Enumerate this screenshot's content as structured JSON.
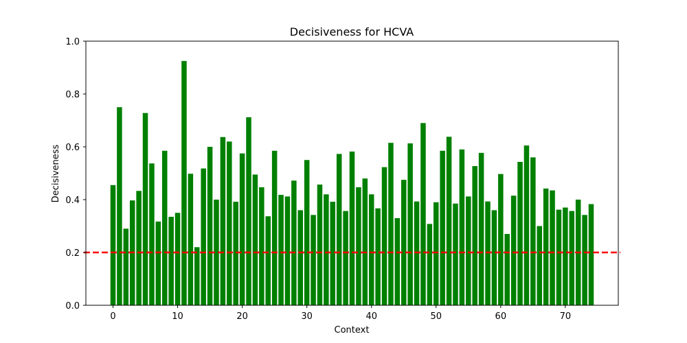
{
  "chart_data": {
    "type": "bar",
    "title": "Decisiveness for HCVA",
    "xlabel": "Context",
    "ylabel": "Decisiveness",
    "xlim": [
      -4.2,
      78.2
    ],
    "ylim": [
      0.0,
      1.0
    ],
    "xticks": [
      0,
      10,
      20,
      30,
      40,
      50,
      60,
      70
    ],
    "yticks": [
      0.0,
      0.2,
      0.4,
      0.6,
      0.8,
      1.0
    ],
    "xtick_labels": [
      "0",
      "10",
      "20",
      "30",
      "40",
      "50",
      "60",
      "70"
    ],
    "ytick_labels": [
      "0.0",
      "0.2",
      "0.4",
      "0.6",
      "0.8",
      "1.0"
    ],
    "bar_color": "#008000",
    "threshold": {
      "value": 0.2,
      "color": "#ff0000",
      "style": "dashed"
    },
    "grid": false,
    "x": [
      0,
      1,
      2,
      3,
      4,
      5,
      6,
      7,
      8,
      9,
      10,
      11,
      12,
      13,
      14,
      15,
      16,
      17,
      18,
      19,
      20,
      21,
      22,
      23,
      24,
      25,
      26,
      27,
      28,
      29,
      30,
      31,
      32,
      33,
      34,
      35,
      36,
      37,
      38,
      39,
      40,
      41,
      42,
      43,
      44,
      45,
      46,
      47,
      48,
      49,
      50,
      51,
      52,
      53,
      54,
      55,
      56,
      57,
      58,
      59,
      60,
      61,
      62,
      63,
      64,
      65,
      66,
      67,
      68,
      69,
      70,
      71,
      72,
      73,
      74
    ],
    "values": [
      0.455,
      0.75,
      0.29,
      0.397,
      0.433,
      0.728,
      0.537,
      0.317,
      0.585,
      0.335,
      0.35,
      0.925,
      0.498,
      0.22,
      0.518,
      0.6,
      0.4,
      0.637,
      0.62,
      0.392,
      0.575,
      0.712,
      0.495,
      0.447,
      0.337,
      0.585,
      0.418,
      0.412,
      0.472,
      0.36,
      0.55,
      0.342,
      0.457,
      0.42,
      0.392,
      0.573,
      0.357,
      0.582,
      0.447,
      0.48,
      0.42,
      0.367,
      0.523,
      0.615,
      0.33,
      0.475,
      0.613,
      0.393,
      0.69,
      0.308,
      0.39,
      0.585,
      0.638,
      0.385,
      0.59,
      0.412,
      0.527,
      0.577,
      0.393,
      0.36,
      0.497,
      0.27,
      0.415,
      0.543,
      0.605,
      0.56,
      0.3,
      0.442,
      0.435,
      0.362,
      0.37,
      0.357,
      0.4,
      0.342,
      0.383
    ]
  }
}
